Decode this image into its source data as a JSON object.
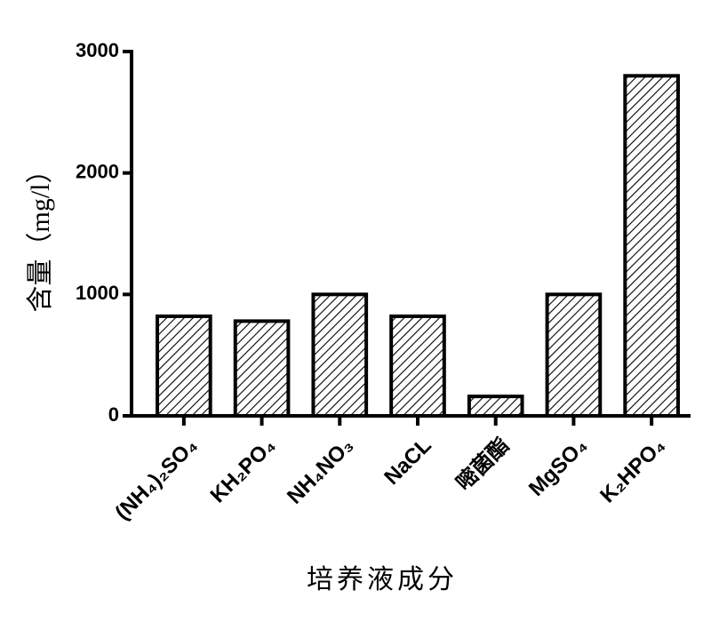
{
  "chart_data": {
    "type": "bar",
    "y_label": "含量（mg/l）",
    "x_label": "培养液成分",
    "categories": [
      "(NH₄)₂SO₄",
      "KH₂PO₄",
      "NH₄NO₃",
      "NaCL",
      "嘧菌酯",
      "MgSO₄",
      "K₂HPO₄"
    ],
    "values": [
      820,
      780,
      1000,
      820,
      160,
      1000,
      2800
    ],
    "color": "#000000",
    "ylim": [
      0,
      3000
    ],
    "yticks": [
      0,
      1000,
      2000,
      3000
    ],
    "grid": false
  }
}
